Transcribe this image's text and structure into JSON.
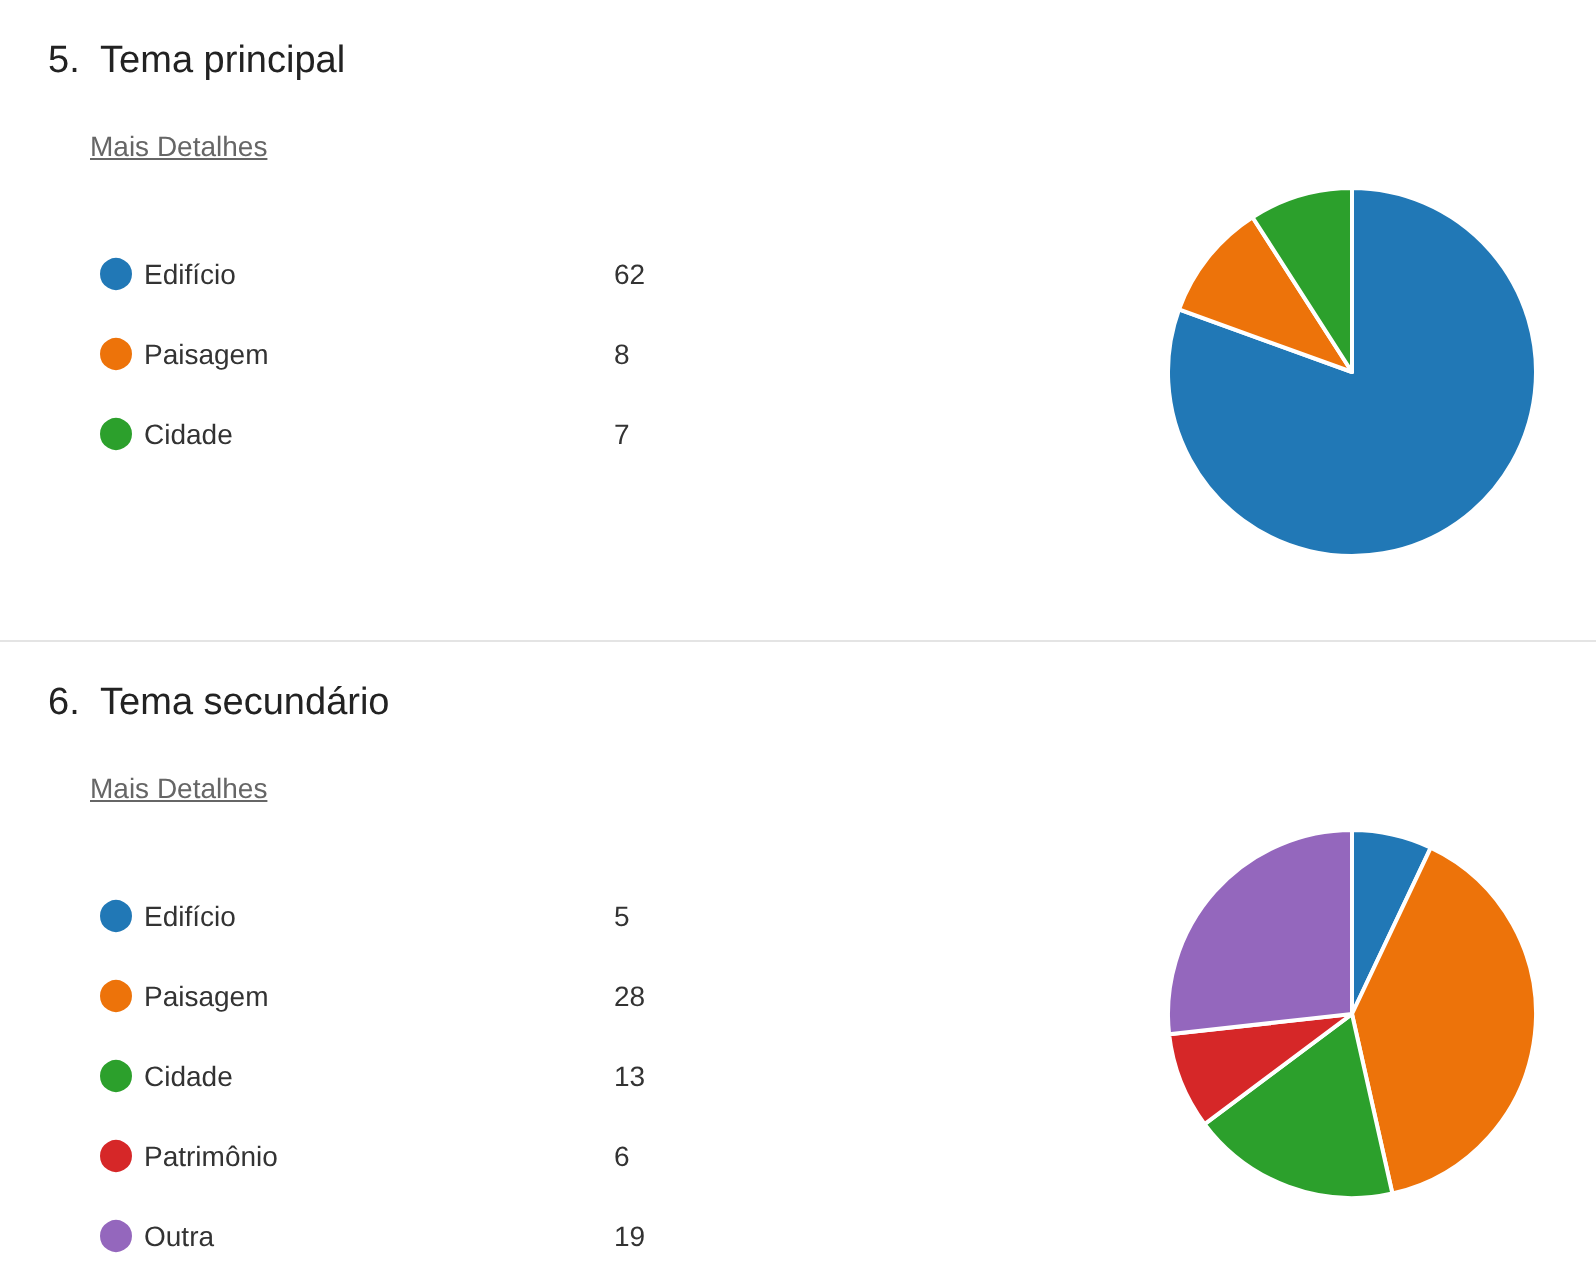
{
  "chart_data": [
    {
      "type": "pie",
      "title": "5.  Tema principal",
      "annotations": [
        "Mais Detalhes"
      ],
      "categories": [
        "Edifício",
        "Paisagem",
        "Cidade"
      ],
      "values": [
        62,
        8,
        7
      ],
      "colors": [
        "#2178b6",
        "#ed730a",
        "#2ca02c"
      ],
      "legend": "left",
      "data_labels": true
    },
    {
      "type": "pie",
      "title": "6.  Tema secundário",
      "annotations": [
        "Mais Detalhes"
      ],
      "categories": [
        "Edifício",
        "Paisagem",
        "Cidade",
        "Patrimônio",
        "Outra"
      ],
      "values": [
        5,
        28,
        13,
        6,
        19
      ],
      "colors": [
        "#2178b6",
        "#ed730a",
        "#2ca02c",
        "#d62728",
        "#9467bd"
      ],
      "legend": "left",
      "data_labels": true
    }
  ]
}
